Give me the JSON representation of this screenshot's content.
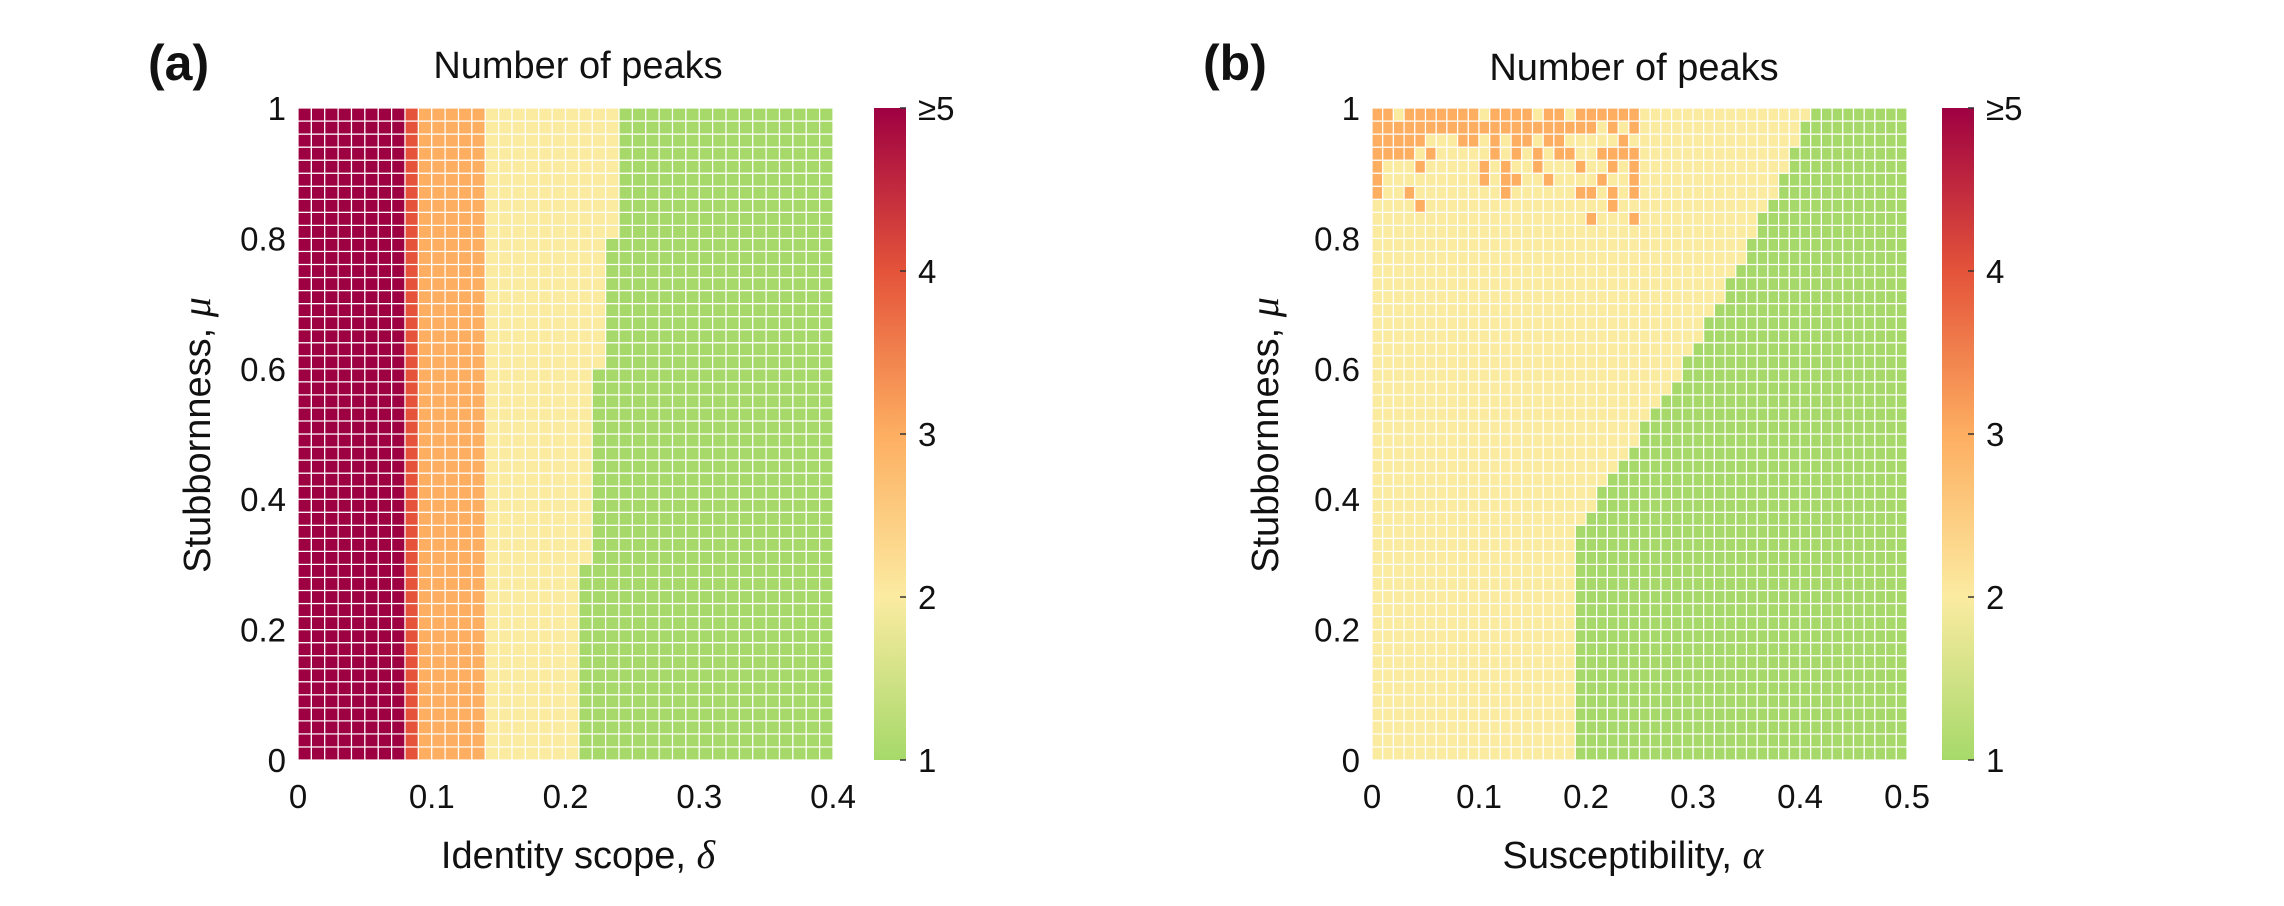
{
  "chart_data": [
    {
      "type": "heatmap",
      "panel_label": "(a)",
      "title": "Number of peaks",
      "xlabel": "Identity scope, ",
      "xsymbol": "δ",
      "ylabel": "Stubbornness, ",
      "ysymbol": "μ",
      "xlim": [
        0,
        0.4
      ],
      "ylim": [
        0,
        1
      ],
      "xticks": [
        "0",
        "0.1",
        "0.2",
        "0.3",
        "0.4"
      ],
      "yticks": [
        "0",
        "0.2",
        "0.4",
        "0.6",
        "0.8",
        "1"
      ],
      "colorbar": {
        "min": 1,
        "max": 5,
        "ticks": [
          "1",
          "2",
          "3",
          "4",
          "≥5"
        ]
      },
      "grid": {
        "nx": 40,
        "ny": 50
      },
      "regions_description": "Columns: delta<0.08 -> >=5 peaks; 0.08-0.09 -> 4; 0.09-0.14 -> 3; 0.14-~0.21..0.24 -> 2; beyond -> 1 peak. Boundary between 2 and 1 moves from delta~0.21 at mu=0 to ~0.24 at mu=1.",
      "boundaries": {
        "five_to_four_at_delta": 0.08,
        "four_to_three_at_delta": 0.09,
        "three_to_two_at_delta": 0.14,
        "two_to_one": [
          {
            "mu": 0.0,
            "delta": 0.21
          },
          {
            "mu": 0.3,
            "delta": 0.215
          },
          {
            "mu": 0.6,
            "delta": 0.225
          },
          {
            "mu": 0.8,
            "delta": 0.235
          },
          {
            "mu": 1.0,
            "delta": 0.24
          }
        ]
      }
    },
    {
      "type": "heatmap",
      "panel_label": "(b)",
      "title": "Number of peaks",
      "xlabel": "Susceptibility, ",
      "xsymbol": "α",
      "ylabel": "Stubbornness, ",
      "ysymbol": "μ",
      "xlim": [
        0,
        0.5
      ],
      "ylim": [
        0,
        1
      ],
      "xticks": [
        "0",
        "0.1",
        "0.2",
        "0.3",
        "0.4",
        "0.5"
      ],
      "yticks": [
        "0",
        "0.2",
        "0.4",
        "0.6",
        "0.8",
        "1"
      ],
      "colorbar": {
        "min": 1,
        "max": 5,
        "ticks": [
          "1",
          "2",
          "3",
          "4",
          "≥5"
        ]
      },
      "grid": {
        "nx": 50,
        "ny": 50
      },
      "regions_description": "Mostly 2 peaks (yellow) at low alpha; 1 peak (green) to the right of a boundary rising from alpha~0.19 at mu<0.35 to alpha~0.41 at mu=1. Scattered 3-peak (orange) cells near mu~0.8-1 for alpha<0.25.",
      "boundaries": {
        "two_to_one": [
          {
            "mu": 0.0,
            "alpha": 0.19
          },
          {
            "mu": 0.34,
            "alpha": 0.19
          },
          {
            "mu": 0.4,
            "alpha": 0.21
          },
          {
            "mu": 0.6,
            "alpha": 0.29
          },
          {
            "mu": 0.8,
            "alpha": 0.355
          },
          {
            "mu": 0.95,
            "alpha": 0.4
          },
          {
            "mu": 1.0,
            "alpha": 0.41
          }
        ],
        "three_peak_cluster": {
          "alpha_max": 0.25,
          "mu_min": 0.78
        }
      }
    }
  ],
  "colors": {
    "c1": "#a6d96a",
    "c2": "#fbeba1",
    "c3": "#fdae61",
    "c4": "#e4533a",
    "c5": "#9e0142"
  }
}
